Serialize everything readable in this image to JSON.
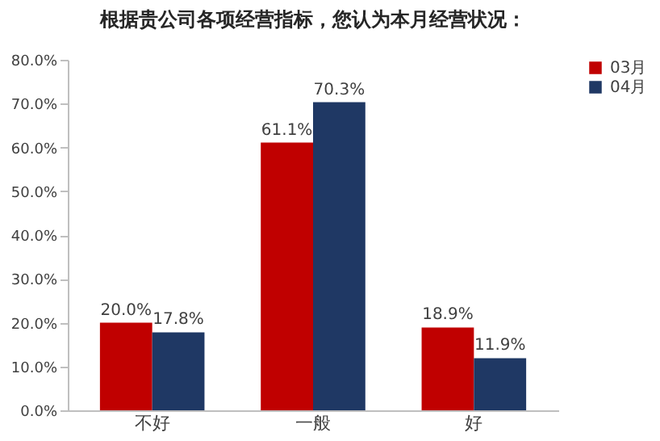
{
  "chart_data": {
    "type": "bar",
    "title": "根据贵公司各项经营指标，您认为本月经营状况：",
    "categories": [
      "不好",
      "一般",
      "好"
    ],
    "series": [
      {
        "name": "03月",
        "color": "#c00000",
        "values": [
          20.0,
          61.1,
          18.9
        ],
        "value_labels": [
          "20.0%",
          "61.1%",
          "18.9%"
        ]
      },
      {
        "name": "04月",
        "color": "#1f3864",
        "values": [
          17.8,
          70.3,
          11.9
        ],
        "value_labels": [
          "17.8%",
          "70.3%",
          "11.9%"
        ]
      }
    ],
    "ylim": [
      0,
      80
    ],
    "yticks": [
      {
        "value": 0,
        "label": "0.0%"
      },
      {
        "value": 10,
        "label": "10.0%"
      },
      {
        "value": 20,
        "label": "20.0%"
      },
      {
        "value": 30,
        "label": "30.0%"
      },
      {
        "value": 40,
        "label": "40.0%"
      },
      {
        "value": 50,
        "label": "50.0%"
      },
      {
        "value": 60,
        "label": "60.0%"
      },
      {
        "value": 70,
        "label": "70.0%"
      },
      {
        "value": 80,
        "label": "80.0%"
      }
    ],
    "grid": false,
    "legend": "right"
  }
}
